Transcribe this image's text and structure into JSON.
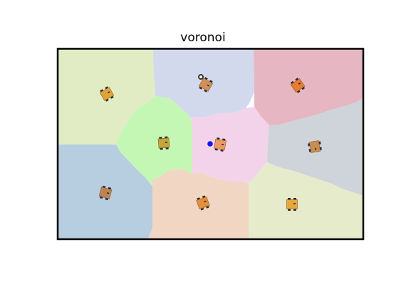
{
  "title": "voronoi",
  "colors": {
    "frame": "#000000",
    "target_dot": "#1515ee",
    "robot_body": "#e49a4a",
    "robot_wheel": "#2a2a2a",
    "marker_ring": "#333333",
    "cells": {
      "top_left": "#e2ecc4",
      "top_center": "#d3d9ed",
      "top_right": "#e6b7c2",
      "middle_left": "#c5f7b4",
      "middle_center": "#f3d3ea",
      "middle_right": "#ced4d9",
      "bottom_left": "#b7cde0",
      "bottom_center": "#f0d6c3",
      "bottom_right": "#e6ebcb"
    }
  },
  "robots": [
    {
      "id": "robot-top-left",
      "color": "#e0a23a"
    },
    {
      "id": "robot-top-center",
      "color": "#cf9059"
    },
    {
      "id": "robot-top-right",
      "color": "#e57c32"
    },
    {
      "id": "robot-middle-left",
      "color": "#c3a63b"
    },
    {
      "id": "robot-middle-center",
      "color": "#ee9865"
    },
    {
      "id": "robot-middle-right",
      "color": "#cb8e52"
    },
    {
      "id": "robot-bottom-left",
      "color": "#b98556"
    },
    {
      "id": "robot-bottom-center",
      "color": "#e58e3e"
    },
    {
      "id": "robot-bottom-right",
      "color": "#e6a83b"
    }
  ]
}
